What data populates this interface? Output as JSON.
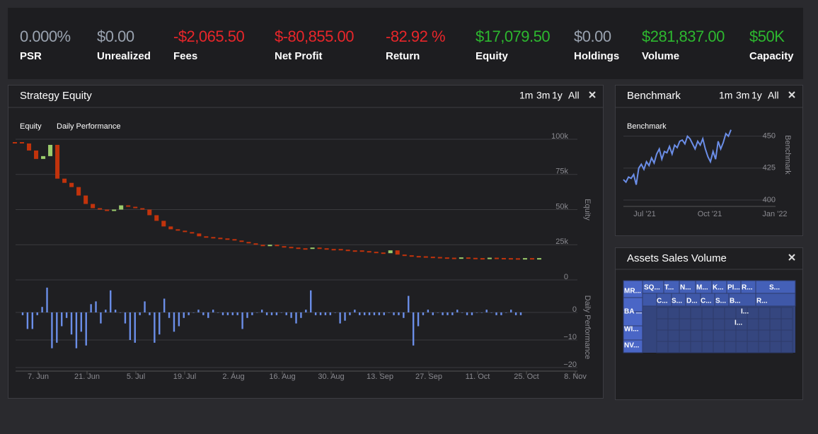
{
  "stats": [
    {
      "value": "0.000%",
      "label": "PSR",
      "color": "#9aa3b0"
    },
    {
      "value": "$0.00",
      "label": "Unrealized",
      "color": "#9aa3b0"
    },
    {
      "value": "-$2,065.50",
      "label": "Fees",
      "color": "#e8262a"
    },
    {
      "value": "$-80,855.00",
      "label": "Net Profit",
      "color": "#e8262a"
    },
    {
      "value": "-82.92 %",
      "label": "Return",
      "color": "#e8262a"
    },
    {
      "value": "$17,079.50",
      "label": "Equity",
      "color": "#2db82f"
    },
    {
      "value": "$0.00",
      "label": "Holdings",
      "color": "#9aa3b0"
    },
    {
      "value": "$281,837.00",
      "label": "Volume",
      "color": "#2db82f"
    },
    {
      "value": "$50K",
      "label": "Capacity",
      "color": "#2db82f"
    }
  ],
  "equity_panel": {
    "title": "Strategy Equity",
    "controls": [
      "1m",
      "3m",
      "1y",
      "All"
    ],
    "legend": [
      "Equity",
      "Daily Performance"
    ],
    "x_labels": [
      "7. Jun",
      "21. Jun",
      "5. Jul",
      "19. Jul",
      "2. Aug",
      "16. Aug",
      "30. Aug",
      "13. Sep",
      "27. Sep",
      "11. Oct",
      "25. Oct",
      "8. Nov"
    ],
    "equity": {
      "axis_title": "Equity",
      "values": [
        98000,
        97000,
        92000,
        86000,
        88000,
        96000,
        72000,
        69000,
        66000,
        60000,
        54000,
        51000,
        50000,
        49000,
        50000,
        53000,
        52000,
        51000,
        50000,
        46000,
        42000,
        38000,
        36000,
        35000,
        34000,
        33000,
        31000,
        30500,
        30000,
        29500,
        29000,
        28000,
        27000,
        26000,
        25000,
        24500,
        25000,
        24000,
        23500,
        23000,
        22500,
        22500,
        23000,
        22500,
        22000,
        22000,
        21500,
        21000,
        21000,
        20500,
        20000,
        19500,
        19000,
        21000,
        18000,
        17500,
        17000,
        16800,
        16500,
        16300,
        16000,
        15800,
        15500,
        16000,
        15700,
        15500,
        15500,
        15800,
        15600,
        15500,
        15400,
        15300,
        15500,
        15200,
        15500
      ],
      "ylim": [
        0,
        100000
      ],
      "yticks": [
        {
          "value": 100000,
          "label": "100k"
        },
        {
          "value": 75000,
          "label": "75k"
        },
        {
          "value": 50000,
          "label": "50k"
        },
        {
          "value": 25000,
          "label": "25k"
        },
        0
      ],
      "up_color": "#9ccc6c",
      "down_color": "#c1330c"
    },
    "daily": {
      "axis_title": "Daily Performance",
      "values": [
        -1,
        -6,
        -6,
        -1,
        2,
        9,
        -13,
        -11,
        -5,
        -2,
        -8,
        -13,
        -7,
        -12,
        3,
        4,
        -4,
        1,
        8,
        1,
        0,
        -4,
        -10,
        -11,
        -1,
        4,
        -1,
        -11,
        -8,
        5,
        -2,
        -7,
        -5,
        -2,
        -1,
        0,
        1,
        -1,
        -2,
        1,
        0,
        -1,
        -1,
        -1,
        -1,
        -6,
        -2,
        -1,
        0,
        1,
        -1,
        -1,
        -1,
        0,
        -1,
        -2,
        -4,
        -2,
        1,
        8,
        -1,
        -1,
        -1,
        -1,
        0,
        -4,
        -3,
        -1,
        1,
        -1,
        -1,
        -1,
        -1,
        -1,
        -1,
        0,
        -1,
        -1,
        -2,
        6,
        -12,
        -5,
        -1,
        1,
        -1,
        0,
        -1,
        -1,
        -1,
        1,
        0,
        -1,
        -1,
        0,
        0,
        1,
        0,
        -1,
        -1,
        0,
        1,
        -1,
        -1
      ],
      "ylim": [
        -20,
        10
      ],
      "yticks": [
        0,
        {
          "value": -10,
          "label": "−10"
        },
        {
          "value": -20,
          "label": "−20"
        }
      ],
      "color": "#6b8ee8"
    }
  },
  "benchmark_panel": {
    "title": "Benchmark",
    "controls": [
      "1m",
      "3m",
      "1y",
      "All"
    ],
    "legend": "Benchmark",
    "axis_title": "Benchmark",
    "x_labels": [
      "Jul '21",
      "Oct '21",
      "Jan '22"
    ],
    "values": [
      416,
      414,
      418,
      417,
      420,
      412,
      425,
      428,
      424,
      430,
      427,
      433,
      429,
      436,
      440,
      432,
      438,
      437,
      442,
      436,
      443,
      441,
      446,
      447,
      444,
      450,
      448,
      444,
      440,
      446,
      443,
      448,
      440,
      434,
      430,
      438,
      432,
      446,
      440,
      445,
      452,
      450,
      455
    ],
    "ylim": [
      395,
      460
    ],
    "yticks": [
      450,
      425,
      400
    ],
    "color": "#6b8ee8"
  },
  "assets_panel": {
    "title": "Assets Sales Volume",
    "labels": [
      "MR...",
      "SQ...",
      "T...",
      "N...",
      "M...",
      "K...",
      "PI...",
      "R...",
      "S...",
      "C...",
      "S...",
      "D...",
      "C...",
      "S...",
      "B...",
      "R...",
      "BA ...",
      "I...",
      "WI...",
      "I...",
      "NV..."
    ]
  }
}
